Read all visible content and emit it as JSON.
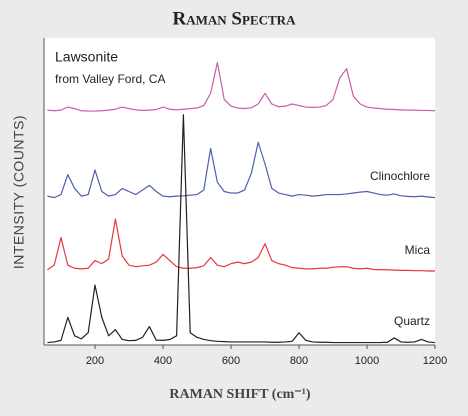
{
  "chart_data": {
    "type": "line",
    "title": "Raman Spectra",
    "xlabel": "RAMAN SHIFT (cm⁻¹)",
    "ylabel": "INTENSITY (COUNTS)",
    "annotation": "from Valley Ford, CA",
    "xlim": [
      50,
      1200
    ],
    "xticks": [
      200,
      400,
      600,
      800,
      1000,
      1200
    ],
    "ylim": [
      0,
      100
    ],
    "x": [
      60,
      80,
      100,
      120,
      140,
      160,
      180,
      200,
      220,
      240,
      260,
      280,
      300,
      320,
      340,
      360,
      380,
      400,
      420,
      440,
      460,
      480,
      500,
      520,
      540,
      560,
      580,
      600,
      620,
      640,
      660,
      680,
      700,
      720,
      740,
      760,
      780,
      800,
      820,
      840,
      860,
      880,
      900,
      920,
      940,
      960,
      980,
      1000,
      1020,
      1040,
      1060,
      1080,
      1100,
      1120,
      1140,
      1160,
      1180,
      1200
    ],
    "series": [
      {
        "name": "Lawsonite",
        "color": "#c85fa6",
        "values": [
          76.5,
          76.3,
          76.5,
          77.5,
          77,
          76.3,
          76.2,
          76.2,
          76.3,
          76.5,
          76.8,
          77.5,
          77,
          76.6,
          76.4,
          76.5,
          76.7,
          77.5,
          76.8,
          76.6,
          76.8,
          77,
          77.2,
          78,
          82,
          92,
          80,
          77.8,
          77.2,
          77,
          77.3,
          78.5,
          82,
          78.5,
          77.6,
          77.8,
          78.5,
          78,
          77.5,
          77.4,
          77.5,
          78,
          80,
          87,
          90,
          81,
          78.5,
          77.5,
          77.2,
          77,
          76.8,
          76.7,
          76.6,
          76.5,
          76.5,
          76.4,
          76.4,
          76.3
        ]
      },
      {
        "name": "Clinochlore",
        "color": "#4f5fae",
        "values": [
          48.5,
          48,
          49,
          55.5,
          51,
          48.5,
          49,
          57,
          50,
          48.5,
          49,
          51,
          50,
          49,
          50.5,
          52,
          50,
          48.5,
          48.3,
          48.5,
          48.6,
          48.8,
          49,
          50.5,
          64,
          53,
          50,
          49.5,
          49.5,
          50.5,
          56,
          66,
          59,
          51,
          49.5,
          49,
          48.5,
          49,
          48.8,
          48.5,
          48.7,
          49,
          49,
          49,
          49.2,
          49.5,
          49.8,
          50,
          49.5,
          49,
          48.8,
          49.2,
          48.6,
          48.4,
          48.3,
          48.5,
          48.2,
          48
        ]
      },
      {
        "name": "Mica",
        "color": "#e8383f",
        "values": [
          24.5,
          26,
          35,
          26,
          25,
          24.8,
          25,
          27.5,
          26.5,
          28,
          41,
          29,
          26,
          25.5,
          25.8,
          26,
          27,
          29.5,
          27.5,
          25.5,
          25,
          25,
          25.2,
          25.8,
          28.5,
          26,
          25.5,
          26.5,
          27,
          26.5,
          27,
          28.5,
          33,
          27.5,
          26.5,
          26,
          25.2,
          25,
          24.8,
          24.8,
          25,
          25,
          25.3,
          25.5,
          25.5,
          25,
          24.8,
          25,
          24.6,
          24.5,
          24.5,
          24.4,
          24.3,
          24.3,
          24.2,
          24.2,
          24.1,
          24.1
        ]
      },
      {
        "name": "Quartz",
        "color": "#222222",
        "values": [
          0.8,
          1,
          1.5,
          9,
          3,
          2,
          4,
          19.5,
          9,
          3,
          5,
          1.8,
          1.4,
          1.5,
          2.5,
          6,
          1.6,
          1.5,
          1.8,
          3,
          75,
          4,
          2.5,
          1.8,
          1.4,
          1.2,
          1.1,
          1,
          1,
          1,
          1,
          1,
          1,
          0.9,
          0.9,
          1,
          1.2,
          4,
          1.5,
          1,
          0.9,
          0.9,
          0.8,
          0.8,
          0.8,
          0.8,
          0.8,
          0.8,
          0.8,
          0.8,
          0.9,
          2.3,
          1,
          0.9,
          1,
          1.8,
          1,
          0.8
        ]
      }
    ]
  }
}
